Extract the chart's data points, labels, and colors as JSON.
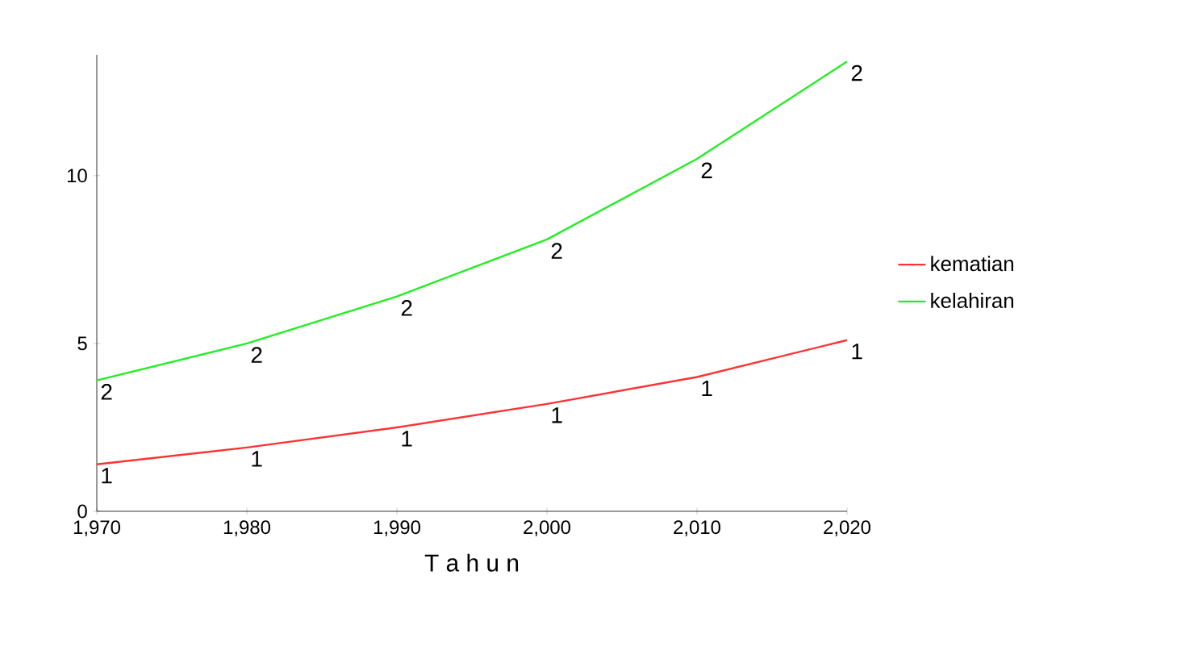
{
  "chart_data": {
    "type": "line",
    "xlabel": "T a h u n",
    "x": [
      1970,
      1980,
      1990,
      2000,
      2010,
      2020
    ],
    "series": [
      {
        "name": "kematian",
        "color": "#ff3333",
        "values": [
          1.4,
          1.9,
          2.5,
          3.2,
          4.0,
          5.1
        ]
      },
      {
        "name": "kelahiran",
        "color": "#22ee22",
        "values": [
          3.9,
          5.0,
          6.4,
          8.1,
          10.5,
          13.4
        ]
      }
    ],
    "xlim": [
      1970,
      2020
    ],
    "ylim": [
      0,
      13.6
    ],
    "xticks": [
      {
        "value": 1970,
        "label": "1,970"
      },
      {
        "value": 1980,
        "label": "1,980"
      },
      {
        "value": 1990,
        "label": "1,990"
      },
      {
        "value": 2000,
        "label": "2,000"
      },
      {
        "value": 2010,
        "label": "2,010"
      },
      {
        "value": 2020,
        "label": "2,020"
      }
    ],
    "yticks": [
      0,
      5,
      10
    ],
    "legend": "right",
    "grid": false,
    "marker": "none",
    "line_style": "solid",
    "annotations": [
      {
        "text": "1",
        "x": 1970,
        "y": 1.4
      },
      {
        "text": "1",
        "x": 1980,
        "y": 1.9
      },
      {
        "text": "1",
        "x": 1990,
        "y": 2.5
      },
      {
        "text": "1",
        "x": 2000,
        "y": 3.2
      },
      {
        "text": "1",
        "x": 2010,
        "y": 4.0
      },
      {
        "text": "1",
        "x": 2020,
        "y": 5.1
      },
      {
        "text": "2",
        "x": 1970,
        "y": 3.9
      },
      {
        "text": "2",
        "x": 1980,
        "y": 5.0
      },
      {
        "text": "2",
        "x": 1990,
        "y": 6.4
      },
      {
        "text": "2",
        "x": 2000,
        "y": 8.1
      },
      {
        "text": "2",
        "x": 2010,
        "y": 10.5
      },
      {
        "text": "2",
        "x": 2020,
        "y": 13.4
      }
    ]
  }
}
